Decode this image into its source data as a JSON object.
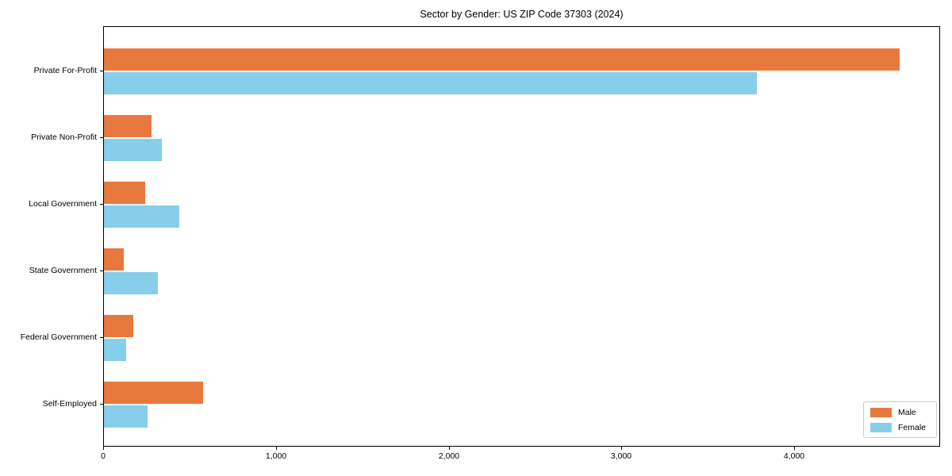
{
  "chart_data": {
    "type": "bar",
    "orientation": "horizontal",
    "title": "Sector by Gender: US ZIP Code 37303 (2024)",
    "categories": [
      "Private For-Profit",
      "Private Non-Profit",
      "Local Government",
      "State Government",
      "Federal Government",
      "Self-Employed"
    ],
    "series": [
      {
        "name": "Male",
        "color": "#e8793e",
        "values": [
          4605,
          275,
          238,
          113,
          168,
          573
        ]
      },
      {
        "name": "Female",
        "color": "#87ceeb",
        "values": [
          3780,
          335,
          437,
          310,
          130,
          252
        ]
      }
    ],
    "xlabel": "",
    "ylabel": "",
    "xlim": [
      0,
      4835
    ],
    "xticks": [
      0,
      1000,
      2000,
      3000,
      4000
    ],
    "xtick_labels": [
      "0",
      "1,000",
      "2,000",
      "3,000",
      "4,000"
    ],
    "grid": false,
    "legend": {
      "position": "lower right",
      "entries": [
        "Male",
        "Female"
      ]
    }
  }
}
